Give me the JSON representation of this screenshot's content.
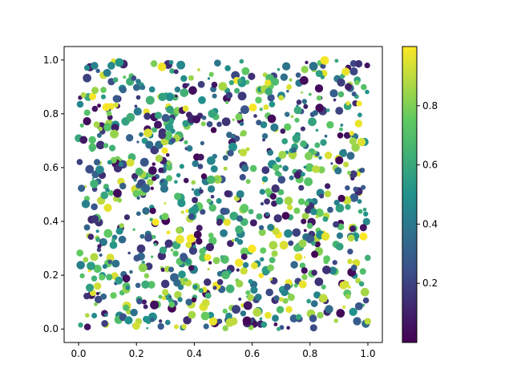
{
  "chart_data": {
    "type": "scatter",
    "title": "",
    "xlabel": "",
    "ylabel": "",
    "xlim": [
      -0.05,
      1.05
    ],
    "ylim": [
      -0.05,
      1.05
    ],
    "x_ticks": [
      "0.0",
      "0.2",
      "0.4",
      "0.6",
      "0.8",
      "1.0"
    ],
    "y_ticks": [
      "0.0",
      "0.2",
      "0.4",
      "0.6",
      "0.8",
      "1.0"
    ],
    "grid": false,
    "colormap": "viridis",
    "colormap_stops": [
      "#440154",
      "#3b528b",
      "#21918c",
      "#5ec962",
      "#fde725"
    ],
    "colorbar": {
      "range": [
        0,
        1
      ],
      "ticks": [
        "0.2",
        "0.4",
        "0.6",
        "0.8"
      ],
      "tick_values": [
        0.2,
        0.4,
        0.6,
        0.8
      ]
    },
    "points": {
      "count": 1000,
      "x_range": [
        0,
        1
      ],
      "y_range": [
        0,
        1
      ],
      "color_value_range": [
        0,
        1
      ],
      "distribution": "uniform random",
      "marker": "filled circle",
      "marker_size": "random, small to large"
    }
  }
}
